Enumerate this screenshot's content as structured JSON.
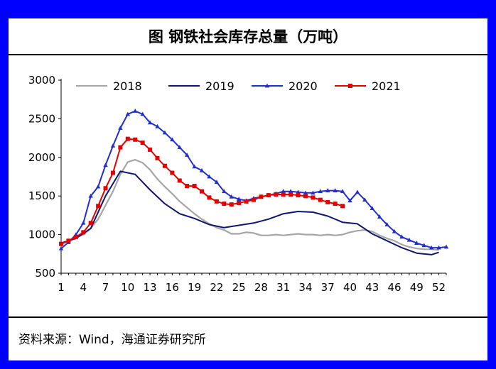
{
  "page": {
    "title": "图  钢铁社会库存总量（万吨）",
    "source": "资料来源：Wind，海通证券研究所"
  },
  "chart_data": {
    "type": "line",
    "title": "图  钢铁社会库存总量（万吨）",
    "xlabel": "",
    "ylabel": "",
    "xlim": [
      1,
      53
    ],
    "ylim": [
      500,
      3000
    ],
    "xticks": [
      1,
      4,
      7,
      10,
      13,
      16,
      19,
      22,
      25,
      28,
      31,
      34,
      37,
      40,
      43,
      46,
      49,
      52
    ],
    "yticks": [
      500,
      1000,
      1500,
      2000,
      2500,
      3000
    ],
    "grid": false,
    "legend": "top",
    "series": [
      {
        "name": "2018",
        "color": "#a6a6a6",
        "marker": "none",
        "x": [
          1,
          2,
          3,
          4,
          5,
          6,
          7,
          8,
          9,
          10,
          11,
          12,
          13,
          14,
          15,
          16,
          17,
          18,
          19,
          20,
          21,
          22,
          23,
          24,
          25,
          26,
          27,
          28,
          29,
          30,
          31,
          32,
          33,
          34,
          35,
          36,
          37,
          38,
          39,
          40,
          41,
          42,
          43,
          44,
          45,
          46,
          47,
          48,
          49,
          50,
          51,
          52
        ],
        "values": [
          880,
          920,
          960,
          1000,
          1080,
          1200,
          1380,
          1560,
          1780,
          1940,
          1970,
          1930,
          1840,
          1720,
          1620,
          1530,
          1430,
          1350,
          1270,
          1200,
          1140,
          1090,
          1060,
          1010,
          1010,
          1030,
          1020,
          990,
          990,
          1000,
          990,
          1000,
          1010,
          1000,
          1000,
          990,
          1000,
          990,
          1000,
          1030,
          1050,
          1060,
          1040,
          990,
          950,
          920,
          870,
          840,
          820,
          810,
          810,
          800
        ]
      },
      {
        "name": "2019",
        "color": "#0d1675",
        "marker": "none",
        "x": [
          1,
          3,
          5,
          7,
          9,
          11,
          13,
          15,
          17,
          19,
          21,
          23,
          25,
          27,
          29,
          31,
          33,
          35,
          37,
          39,
          41,
          43,
          45,
          47,
          49,
          51,
          52
        ],
        "values": [
          890,
          950,
          1080,
          1500,
          1820,
          1780,
          1580,
          1400,
          1270,
          1210,
          1130,
          1090,
          1120,
          1150,
          1200,
          1270,
          1300,
          1290,
          1240,
          1160,
          1140,
          1010,
          920,
          830,
          760,
          740,
          770
        ]
      },
      {
        "name": "2020",
        "color": "#1f2fd4",
        "marker": "triangle",
        "x": [
          1,
          2,
          3,
          4,
          5,
          6,
          7,
          8,
          9,
          10,
          11,
          12,
          13,
          14,
          15,
          16,
          17,
          18,
          19,
          20,
          21,
          22,
          23,
          24,
          25,
          26,
          27,
          28,
          29,
          30,
          31,
          32,
          33,
          34,
          35,
          36,
          37,
          38,
          39,
          40,
          41,
          42,
          43,
          44,
          45,
          46,
          47,
          48,
          49,
          50,
          51,
          52,
          53
        ],
        "values": [
          820,
          900,
          1000,
          1150,
          1500,
          1620,
          1900,
          2150,
          2380,
          2560,
          2600,
          2560,
          2450,
          2400,
          2320,
          2230,
          2130,
          2030,
          1880,
          1830,
          1750,
          1680,
          1560,
          1490,
          1460,
          1440,
          1470,
          1490,
          1510,
          1530,
          1560,
          1560,
          1550,
          1540,
          1540,
          1560,
          1570,
          1570,
          1560,
          1440,
          1550,
          1450,
          1340,
          1230,
          1130,
          1040,
          970,
          930,
          890,
          860,
          830,
          830,
          840
        ]
      },
      {
        "name": "2021",
        "color": "#e60000",
        "marker": "square",
        "x": [
          1,
          2,
          3,
          4,
          5,
          6,
          7,
          8,
          9,
          10,
          11,
          12,
          13,
          14,
          15,
          16,
          17,
          18,
          19,
          20,
          21,
          22,
          23,
          24,
          25,
          26,
          27,
          28,
          29,
          30,
          31,
          32,
          33,
          34,
          35,
          36,
          37,
          38,
          39
        ],
        "values": [
          880,
          920,
          970,
          1030,
          1150,
          1370,
          1600,
          1800,
          2130,
          2240,
          2230,
          2190,
          2100,
          1990,
          1890,
          1800,
          1700,
          1630,
          1630,
          1560,
          1480,
          1430,
          1400,
          1390,
          1410,
          1430,
          1450,
          1490,
          1510,
          1520,
          1520,
          1520,
          1510,
          1500,
          1480,
          1450,
          1420,
          1400,
          1370
        ]
      }
    ]
  }
}
